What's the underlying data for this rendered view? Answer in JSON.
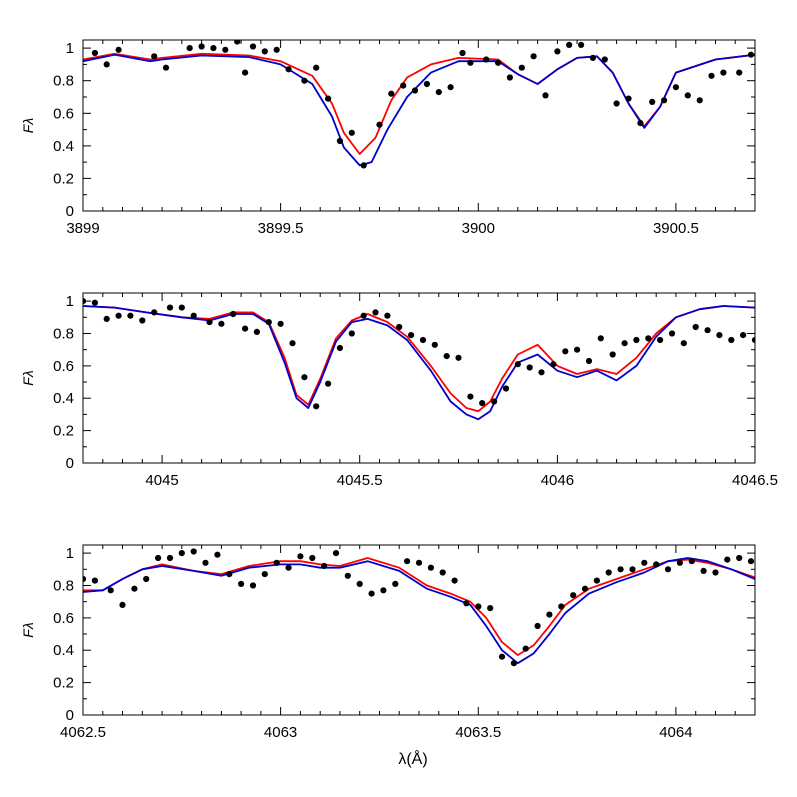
{
  "colors": {
    "model_red": "#ff0000",
    "model_blue": "#0000cc",
    "observed": "#000000",
    "axes": "#000000",
    "background": "#ffffff"
  },
  "figure": {
    "xlabel": "λ(Å)"
  },
  "chart_data": [
    {
      "type": "line",
      "ylabel": "Fλ",
      "xlim": [
        3899.0,
        3900.7
      ],
      "ylim": [
        0,
        1.05
      ],
      "xticks": [
        3899,
        3899.5,
        3900,
        3900.5
      ],
      "xtick_labels": [
        "3899",
        "3899.5",
        "3900",
        "3900.5"
      ],
      "yticks": [
        0,
        0.2,
        0.4,
        0.6,
        0.8,
        1
      ],
      "ytick_labels": [
        "0",
        "0.2",
        "0.4",
        "0.6",
        "0.8",
        "1"
      ],
      "series": [
        {
          "color": "#ff0000",
          "kind": "line",
          "x": [
            3899.0,
            3899.08,
            3899.17,
            3899.2,
            3899.3,
            3899.42,
            3899.5,
            3899.58,
            3899.63,
            3899.66,
            3899.7,
            3899.74,
            3899.78,
            3899.82,
            3899.88,
            3899.95,
            3900.05,
            3900.1,
            3900.15,
            3900.2,
            3900.25,
            3900.3,
            3900.34,
            3900.38,
            3900.42,
            3900.46,
            3900.5,
            3900.6,
            3900.7
          ],
          "y": [
            0.93,
            0.965,
            0.93,
            0.94,
            0.965,
            0.955,
            0.92,
            0.83,
            0.66,
            0.48,
            0.35,
            0.45,
            0.68,
            0.82,
            0.9,
            0.94,
            0.93,
            0.84,
            0.78,
            0.87,
            0.94,
            0.95,
            0.85,
            0.66,
            0.52,
            0.64,
            0.85,
            0.93,
            0.96
          ]
        },
        {
          "color": "#0000cc",
          "kind": "line",
          "x": [
            3899.0,
            3899.08,
            3899.17,
            3899.2,
            3899.3,
            3899.42,
            3899.5,
            3899.58,
            3899.63,
            3899.66,
            3899.7,
            3899.73,
            3899.77,
            3899.82,
            3899.88,
            3899.95,
            3900.05,
            3900.1,
            3900.15,
            3900.2,
            3900.25,
            3900.3,
            3900.34,
            3900.38,
            3900.42,
            3900.46,
            3900.5,
            3900.6,
            3900.7
          ],
          "y": [
            0.92,
            0.96,
            0.92,
            0.93,
            0.955,
            0.945,
            0.9,
            0.78,
            0.58,
            0.39,
            0.28,
            0.3,
            0.5,
            0.7,
            0.85,
            0.92,
            0.92,
            0.84,
            0.78,
            0.87,
            0.94,
            0.95,
            0.85,
            0.66,
            0.51,
            0.64,
            0.85,
            0.93,
            0.96
          ]
        },
        {
          "color": "#000000",
          "kind": "points",
          "x": [
            3899.03,
            3899.06,
            3899.09,
            3899.18,
            3899.21,
            3899.27,
            3899.3,
            3899.33,
            3899.36,
            3899.39,
            3899.41,
            3899.43,
            3899.46,
            3899.49,
            3899.52,
            3899.56,
            3899.59,
            3899.62,
            3899.65,
            3899.68,
            3899.71,
            3899.75,
            3899.78,
            3899.81,
            3899.84,
            3899.87,
            3899.9,
            3899.93,
            3899.96,
            3899.98,
            3900.02,
            3900.05,
            3900.08,
            3900.11,
            3900.14,
            3900.17,
            3900.2,
            3900.23,
            3900.26,
            3900.29,
            3900.32,
            3900.35,
            3900.38,
            3900.41,
            3900.44,
            3900.47,
            3900.5,
            3900.53,
            3900.56,
            3900.59,
            3900.62,
            3900.66,
            3900.69
          ],
          "y": [
            0.97,
            0.9,
            0.99,
            0.95,
            0.88,
            1.0,
            1.01,
            1.0,
            0.99,
            1.04,
            0.85,
            1.01,
            0.98,
            0.99,
            0.87,
            0.8,
            0.88,
            0.69,
            0.43,
            0.48,
            0.28,
            0.53,
            0.72,
            0.77,
            0.74,
            0.78,
            0.73,
            0.76,
            0.97,
            0.91,
            0.93,
            0.91,
            0.82,
            0.88,
            0.95,
            0.71,
            0.98,
            1.02,
            1.02,
            0.94,
            0.93,
            0.66,
            0.69,
            0.54,
            0.67,
            0.68,
            0.76,
            0.71,
            0.68,
            0.83,
            0.85,
            0.85,
            0.96
          ]
        }
      ]
    },
    {
      "type": "line",
      "ylabel": "Fλ",
      "xlim": [
        4044.8,
        4046.5
      ],
      "ylim": [
        0,
        1.05
      ],
      "xticks": [
        4045,
        4045.5,
        4046,
        4046.5
      ],
      "xtick_labels": [
        "4045",
        "4045.5",
        "4046",
        "4046.5"
      ],
      "yticks": [
        0,
        0.2,
        0.4,
        0.6,
        0.8,
        1
      ],
      "ytick_labels": [
        "0",
        "0.2",
        "0.4",
        "0.6",
        "0.8",
        "1"
      ],
      "series": [
        {
          "color": "#ff0000",
          "kind": "line",
          "x": [
            4044.8,
            4044.88,
            4044.96,
            4045.05,
            4045.12,
            4045.18,
            4045.23,
            4045.27,
            4045.31,
            4045.34,
            4045.37,
            4045.4,
            4045.44,
            4045.48,
            4045.52,
            4045.57,
            4045.62,
            4045.68,
            4045.73,
            4045.77,
            4045.8,
            4045.83,
            4045.86,
            4045.9,
            4045.95,
            4046.0,
            4046.05,
            4046.1,
            4046.15,
            4046.2,
            4046.25,
            4046.3,
            4046.36,
            4046.42,
            4046.5
          ],
          "y": [
            0.97,
            0.96,
            0.93,
            0.9,
            0.89,
            0.93,
            0.93,
            0.87,
            0.65,
            0.42,
            0.36,
            0.52,
            0.77,
            0.88,
            0.92,
            0.87,
            0.78,
            0.6,
            0.43,
            0.34,
            0.32,
            0.38,
            0.52,
            0.67,
            0.73,
            0.6,
            0.55,
            0.58,
            0.55,
            0.65,
            0.8,
            0.9,
            0.95,
            0.97,
            0.96
          ]
        },
        {
          "color": "#0000cc",
          "kind": "line",
          "x": [
            4044.8,
            4044.88,
            4044.96,
            4045.05,
            4045.12,
            4045.18,
            4045.23,
            4045.27,
            4045.31,
            4045.34,
            4045.37,
            4045.4,
            4045.44,
            4045.48,
            4045.52,
            4045.57,
            4045.62,
            4045.68,
            4045.73,
            4045.77,
            4045.8,
            4045.83,
            4045.86,
            4045.9,
            4045.95,
            4046.0,
            4046.05,
            4046.1,
            4046.15,
            4046.2,
            4046.25,
            4046.3,
            4046.36,
            4046.42,
            4046.5
          ],
          "y": [
            0.97,
            0.96,
            0.93,
            0.9,
            0.88,
            0.92,
            0.92,
            0.86,
            0.62,
            0.4,
            0.34,
            0.5,
            0.75,
            0.87,
            0.89,
            0.85,
            0.76,
            0.57,
            0.38,
            0.3,
            0.27,
            0.32,
            0.47,
            0.62,
            0.67,
            0.57,
            0.53,
            0.57,
            0.51,
            0.6,
            0.78,
            0.9,
            0.95,
            0.97,
            0.96
          ]
        },
        {
          "color": "#000000",
          "kind": "points",
          "x": [
            4044.8,
            4044.83,
            4044.86,
            4044.89,
            4044.92,
            4044.95,
            4044.98,
            4045.02,
            4045.05,
            4045.08,
            4045.12,
            4045.15,
            4045.18,
            4045.21,
            4045.24,
            4045.27,
            4045.3,
            4045.33,
            4045.36,
            4045.39,
            4045.42,
            4045.45,
            4045.48,
            4045.51,
            4045.54,
            4045.57,
            4045.6,
            4045.63,
            4045.66,
            4045.69,
            4045.72,
            4045.75,
            4045.78,
            4045.81,
            4045.84,
            4045.87,
            4045.9,
            4045.93,
            4045.96,
            4045.99,
            4046.02,
            4046.05,
            4046.08,
            4046.11,
            4046.14,
            4046.17,
            4046.2,
            4046.23,
            4046.26,
            4046.29,
            4046.32,
            4046.35,
            4046.38,
            4046.41,
            4046.44,
            4046.47,
            4046.5
          ],
          "y": [
            1.0,
            0.99,
            0.89,
            0.91,
            0.91,
            0.88,
            0.93,
            0.96,
            0.96,
            0.91,
            0.87,
            0.86,
            0.92,
            0.83,
            0.81,
            0.87,
            0.86,
            0.74,
            0.53,
            0.35,
            0.49,
            0.71,
            0.8,
            0.91,
            0.93,
            0.91,
            0.84,
            0.79,
            0.76,
            0.73,
            0.66,
            0.65,
            0.41,
            0.37,
            0.38,
            0.46,
            0.61,
            0.59,
            0.56,
            0.61,
            0.69,
            0.7,
            0.63,
            0.77,
            0.67,
            0.74,
            0.76,
            0.77,
            0.76,
            0.8,
            0.74,
            0.84,
            0.82,
            0.79,
            0.76,
            0.79,
            0.76
          ]
        }
      ]
    },
    {
      "type": "line",
      "ylabel": "Fλ",
      "xlim": [
        4062.5,
        4064.2
      ],
      "ylim": [
        0,
        1.05
      ],
      "xticks": [
        4062.5,
        4063,
        4063.5,
        4064
      ],
      "xtick_labels": [
        "4062.5",
        "4063",
        "4063.5",
        "4064"
      ],
      "yticks": [
        0,
        0.2,
        0.4,
        0.6,
        0.8,
        1
      ],
      "ytick_labels": [
        "0",
        "0.2",
        "0.4",
        "0.6",
        "0.8",
        "1"
      ],
      "series": [
        {
          "color": "#ff0000",
          "kind": "line",
          "x": [
            4062.5,
            4062.55,
            4062.6,
            4062.65,
            4062.7,
            4062.78,
            4062.85,
            4062.92,
            4063.0,
            4063.05,
            4063.1,
            4063.15,
            4063.22,
            4063.3,
            4063.37,
            4063.43,
            4063.48,
            4063.52,
            4063.56,
            4063.6,
            4063.64,
            4063.68,
            4063.72,
            4063.78,
            4063.85,
            4063.92,
            4063.98,
            4064.03,
            4064.08,
            4064.14,
            4064.2
          ],
          "y": [
            0.77,
            0.77,
            0.84,
            0.9,
            0.93,
            0.89,
            0.87,
            0.92,
            0.95,
            0.95,
            0.93,
            0.92,
            0.97,
            0.91,
            0.8,
            0.75,
            0.7,
            0.6,
            0.45,
            0.37,
            0.43,
            0.55,
            0.68,
            0.78,
            0.84,
            0.9,
            0.95,
            0.96,
            0.94,
            0.9,
            0.85
          ]
        },
        {
          "color": "#0000cc",
          "kind": "line",
          "x": [
            4062.5,
            4062.55,
            4062.6,
            4062.65,
            4062.7,
            4062.78,
            4062.85,
            4062.92,
            4063.0,
            4063.05,
            4063.1,
            4063.15,
            4063.22,
            4063.3,
            4063.37,
            4063.43,
            4063.48,
            4063.52,
            4063.56,
            4063.6,
            4063.64,
            4063.68,
            4063.72,
            4063.78,
            4063.85,
            4063.92,
            4063.98,
            4064.03,
            4064.08,
            4064.14,
            4064.2
          ],
          "y": [
            0.76,
            0.77,
            0.84,
            0.9,
            0.92,
            0.89,
            0.86,
            0.91,
            0.93,
            0.93,
            0.91,
            0.91,
            0.95,
            0.89,
            0.78,
            0.73,
            0.68,
            0.55,
            0.4,
            0.32,
            0.38,
            0.5,
            0.63,
            0.75,
            0.82,
            0.88,
            0.95,
            0.97,
            0.95,
            0.9,
            0.84
          ]
        },
        {
          "color": "#000000",
          "kind": "points",
          "x": [
            4062.5,
            4062.53,
            4062.57,
            4062.6,
            4062.63,
            4062.66,
            4062.69,
            4062.72,
            4062.75,
            4062.78,
            4062.81,
            4062.84,
            4062.87,
            4062.9,
            4062.93,
            4062.96,
            4062.99,
            4063.02,
            4063.05,
            4063.08,
            4063.11,
            4063.14,
            4063.17,
            4063.2,
            4063.23,
            4063.26,
            4063.29,
            4063.32,
            4063.35,
            4063.38,
            4063.41,
            4063.44,
            4063.47,
            4063.5,
            4063.53,
            4063.56,
            4063.59,
            4063.62,
            4063.65,
            4063.68,
            4063.71,
            4063.74,
            4063.77,
            4063.8,
            4063.83,
            4063.86,
            4063.89,
            4063.92,
            4063.95,
            4063.98,
            4064.01,
            4064.04,
            4064.07,
            4064.1,
            4064.13,
            4064.16,
            4064.19
          ],
          "y": [
            0.84,
            0.83,
            0.77,
            0.68,
            0.78,
            0.84,
            0.97,
            0.97,
            1.0,
            1.01,
            0.94,
            0.99,
            0.87,
            0.81,
            0.8,
            0.87,
            0.94,
            0.91,
            0.98,
            0.97,
            0.92,
            1.0,
            0.86,
            0.81,
            0.75,
            0.77,
            0.81,
            0.95,
            0.94,
            0.91,
            0.88,
            0.83,
            0.69,
            0.67,
            0.66,
            0.36,
            0.32,
            0.41,
            0.55,
            0.62,
            0.67,
            0.74,
            0.78,
            0.83,
            0.88,
            0.9,
            0.9,
            0.94,
            0.93,
            0.9,
            0.94,
            0.95,
            0.89,
            0.88,
            0.96,
            0.97,
            0.95
          ]
        }
      ]
    }
  ]
}
